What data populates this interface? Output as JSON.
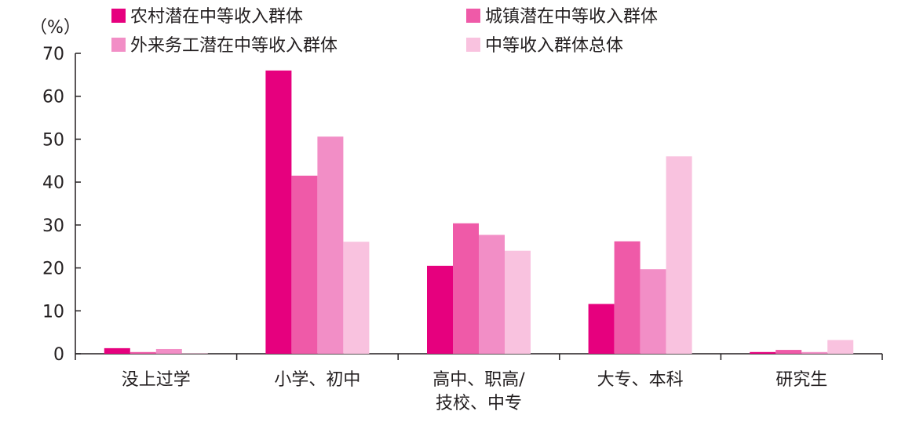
{
  "chart_data": {
    "type": "bar",
    "unit_label": "（%）",
    "categories": [
      [
        "没上过学"
      ],
      [
        "小学、初中"
      ],
      [
        "高中、职高/",
        "技校、中专"
      ],
      [
        "大专、本科"
      ],
      [
        "研究生"
      ]
    ],
    "series": [
      {
        "name": "农村潜在中等收入群体",
        "color": "#e6007e",
        "values": [
          1.3,
          66.0,
          20.5,
          11.6,
          0.4
        ]
      },
      {
        "name": "城镇潜在中等收入群体",
        "color": "#ef5aa8",
        "values": [
          0.4,
          41.5,
          30.4,
          26.2,
          0.9
        ]
      },
      {
        "name": "外来务工潜在中等收入群体",
        "color": "#f28ec6",
        "values": [
          1.1,
          50.6,
          27.7,
          19.7,
          0.4
        ]
      },
      {
        "name": "中等收入群体总体",
        "color": "#f9c2df",
        "values": [
          0.1,
          26.1,
          24.0,
          46.0,
          3.2
        ]
      }
    ],
    "ylim": [
      0,
      70
    ],
    "yticks": [
      0,
      10,
      20,
      30,
      40,
      50,
      60,
      70
    ],
    "legend_position": "top",
    "grid": false
  }
}
